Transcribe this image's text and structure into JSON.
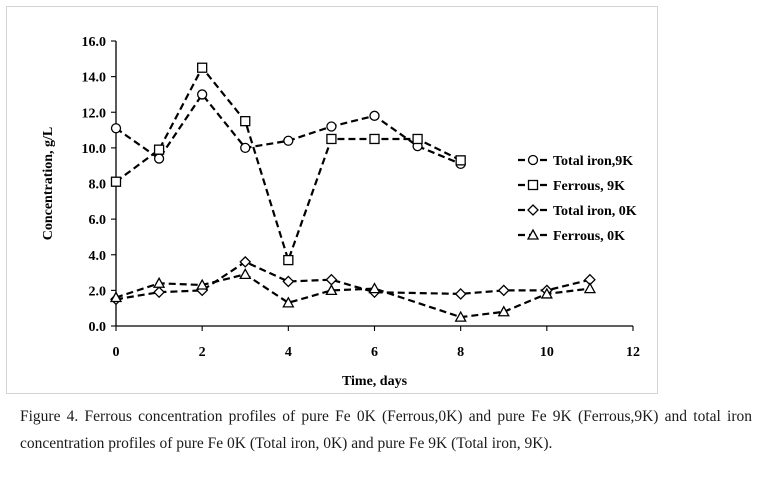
{
  "chart_data": {
    "type": "line",
    "title": "",
    "xlabel": "Time, days",
    "ylabel": "Concentration, g/L",
    "xlim": [
      0,
      12
    ],
    "ylim": [
      0,
      16
    ],
    "xticks": [
      0,
      2,
      4,
      6,
      8,
      10,
      12
    ],
    "xtick_labels": [
      "0",
      "2",
      "4",
      "6",
      "8",
      "10",
      "12"
    ],
    "yticks": [
      0,
      2,
      4,
      6,
      8,
      10,
      12,
      14,
      16
    ],
    "ytick_labels": [
      "0.0",
      "2.0",
      "4.0",
      "6.0",
      "8.0",
      "10.0",
      "12.0",
      "14.0",
      "16.0"
    ],
    "grid": false,
    "legend_position": "right",
    "series": [
      {
        "name": "Total iron,9K",
        "marker": "circle",
        "color": "#000000",
        "x": [
          0,
          1,
          2,
          3,
          4,
          5,
          6,
          7,
          8
        ],
        "y": [
          11.1,
          9.4,
          13.0,
          10.0,
          10.4,
          11.2,
          11.8,
          10.1,
          9.1
        ]
      },
      {
        "name": "Ferrous, 9K",
        "marker": "square",
        "color": "#000000",
        "x": [
          0,
          1,
          2,
          3,
          4,
          5,
          6,
          7,
          8
        ],
        "y": [
          8.1,
          9.9,
          14.5,
          11.5,
          3.7,
          10.5,
          10.5,
          10.5,
          9.3
        ]
      },
      {
        "name": "Total iron, 0K",
        "marker": "diamond",
        "color": "#000000",
        "x": [
          0,
          1,
          2,
          3,
          4,
          5,
          6,
          8,
          9,
          10,
          11
        ],
        "y": [
          1.5,
          1.9,
          2.0,
          3.6,
          2.5,
          2.6,
          1.9,
          1.8,
          2.0,
          2.0,
          2.6
        ]
      },
      {
        "name": "Ferrous, 0K",
        "marker": "triangle",
        "color": "#000000",
        "x": [
          0,
          1,
          2,
          3,
          4,
          5,
          6,
          8,
          9,
          10,
          11
        ],
        "y": [
          1.6,
          2.4,
          2.3,
          2.9,
          1.3,
          2.0,
          2.1,
          0.5,
          0.8,
          1.8,
          2.1
        ]
      }
    ]
  },
  "caption": "Figure 4. Ferrous concentration profiles of pure Fe 0K (Ferrous,0K) and pure Fe 9K (Ferrous,9K) and total iron concentration profiles of pure Fe 0K (Total iron, 0K) and pure Fe 9K (Total iron, 9K)."
}
